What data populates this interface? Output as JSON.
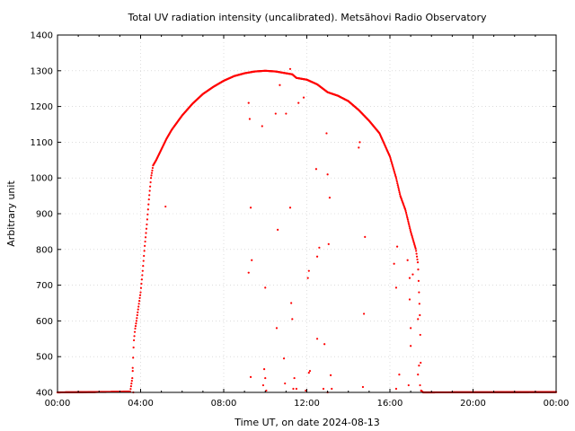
{
  "chart_data": {
    "type": "scatter",
    "title": "Total UV radiation intensity (uncalibrated). Metsähovi Radio Observatory",
    "xlabel": "Time UT, on date 2024-08-13",
    "ylabel": "Arbitrary unit",
    "x_unit": "hours UT",
    "xlim": [
      0,
      24
    ],
    "ylim": [
      400,
      1400
    ],
    "x_ticks": [
      {
        "value": 0,
        "label": "00:00"
      },
      {
        "value": 4,
        "label": "04:00"
      },
      {
        "value": 8,
        "label": "08:00"
      },
      {
        "value": 12,
        "label": "12:00"
      },
      {
        "value": 16,
        "label": "16:00"
      },
      {
        "value": 20,
        "label": "20:00"
      },
      {
        "value": 24,
        "label": "00:00"
      }
    ],
    "y_ticks": [
      400,
      500,
      600,
      700,
      800,
      900,
      1000,
      1100,
      1200,
      1300,
      1400
    ],
    "grid": true,
    "legend": "none",
    "series_color": "#ff0000",
    "envelope": [
      [
        0.0,
        400
      ],
      [
        3.5,
        402
      ],
      [
        3.6,
        440
      ],
      [
        3.67,
        540
      ],
      [
        3.73,
        575
      ],
      [
        3.8,
        600
      ],
      [
        3.9,
        640
      ],
      [
        4.0,
        680
      ],
      [
        4.1,
        740
      ],
      [
        4.2,
        810
      ],
      [
        4.3,
        870
      ],
      [
        4.4,
        940
      ],
      [
        4.5,
        1000
      ],
      [
        4.6,
        1035
      ],
      [
        4.75,
        1050
      ],
      [
        5.0,
        1080
      ],
      [
        5.25,
        1110
      ],
      [
        5.5,
        1135
      ],
      [
        6.0,
        1175
      ],
      [
        6.5,
        1208
      ],
      [
        7.0,
        1235
      ],
      [
        7.5,
        1255
      ],
      [
        8.0,
        1272
      ],
      [
        8.5,
        1285
      ],
      [
        9.0,
        1293
      ],
      [
        9.5,
        1298
      ],
      [
        10.0,
        1300
      ],
      [
        10.5,
        1298
      ],
      [
        11.0,
        1293
      ],
      [
        11.3,
        1290
      ],
      [
        11.5,
        1280
      ],
      [
        12.0,
        1275
      ],
      [
        12.5,
        1262
      ],
      [
        13.0,
        1240
      ],
      [
        13.5,
        1230
      ],
      [
        14.0,
        1215
      ],
      [
        14.5,
        1190
      ],
      [
        15.0,
        1160
      ],
      [
        15.5,
        1125
      ],
      [
        16.0,
        1060
      ],
      [
        16.3,
        1000
      ],
      [
        16.5,
        950
      ],
      [
        16.75,
        910
      ],
      [
        17.0,
        850
      ],
      [
        17.25,
        800
      ],
      [
        17.35,
        760
      ],
      [
        17.45,
        600
      ],
      [
        17.5,
        405
      ],
      [
        17.6,
        400
      ],
      [
        24.0,
        401
      ]
    ],
    "outliers": [
      [
        3.62,
        460
      ],
      [
        3.65,
        400
      ],
      [
        5.2,
        920
      ],
      [
        9.2,
        735
      ],
      [
        9.2,
        1210
      ],
      [
        9.25,
        1165
      ],
      [
        9.3,
        917
      ],
      [
        9.35,
        770
      ],
      [
        9.3,
        443
      ],
      [
        9.85,
        1145
      ],
      [
        10.0,
        693
      ],
      [
        9.9,
        420
      ],
      [
        9.95,
        465
      ],
      [
        10.0,
        440
      ],
      [
        10.05,
        405
      ],
      [
        10.5,
        1180
      ],
      [
        10.6,
        855
      ],
      [
        10.7,
        1260
      ],
      [
        10.55,
        580
      ],
      [
        10.9,
        495
      ],
      [
        10.95,
        425
      ],
      [
        11.0,
        1180
      ],
      [
        11.2,
        917
      ],
      [
        11.25,
        650
      ],
      [
        11.3,
        605
      ],
      [
        11.2,
        1305
      ],
      [
        11.35,
        410
      ],
      [
        11.4,
        440
      ],
      [
        11.5,
        410
      ],
      [
        11.6,
        1210
      ],
      [
        11.85,
        1225
      ],
      [
        12.05,
        720
      ],
      [
        12.1,
        740
      ],
      [
        12.1,
        455
      ],
      [
        12.15,
        460
      ],
      [
        11.95,
        405
      ],
      [
        12.45,
        1025
      ],
      [
        12.5,
        780
      ],
      [
        12.6,
        805
      ],
      [
        12.5,
        550
      ],
      [
        12.8,
        410
      ],
      [
        12.85,
        535
      ],
      [
        12.95,
        1125
      ],
      [
        13.0,
        1010
      ],
      [
        13.05,
        815
      ],
      [
        13.1,
        945
      ],
      [
        13.15,
        448
      ],
      [
        13.2,
        410
      ],
      [
        13.0,
        400
      ],
      [
        14.5,
        1085
      ],
      [
        14.55,
        1100
      ],
      [
        14.8,
        835
      ],
      [
        14.75,
        620
      ],
      [
        14.7,
        415
      ],
      [
        16.2,
        760
      ],
      [
        16.3,
        693
      ],
      [
        16.35,
        808
      ],
      [
        16.45,
        450
      ],
      [
        16.3,
        410
      ],
      [
        16.85,
        770
      ],
      [
        16.95,
        720
      ],
      [
        16.95,
        660
      ],
      [
        17.0,
        580
      ],
      [
        17.0,
        530
      ],
      [
        17.1,
        730
      ],
      [
        17.35,
        605
      ],
      [
        17.4,
        475
      ],
      [
        17.35,
        450
      ],
      [
        17.45,
        420
      ],
      [
        16.9,
        420
      ]
    ]
  }
}
